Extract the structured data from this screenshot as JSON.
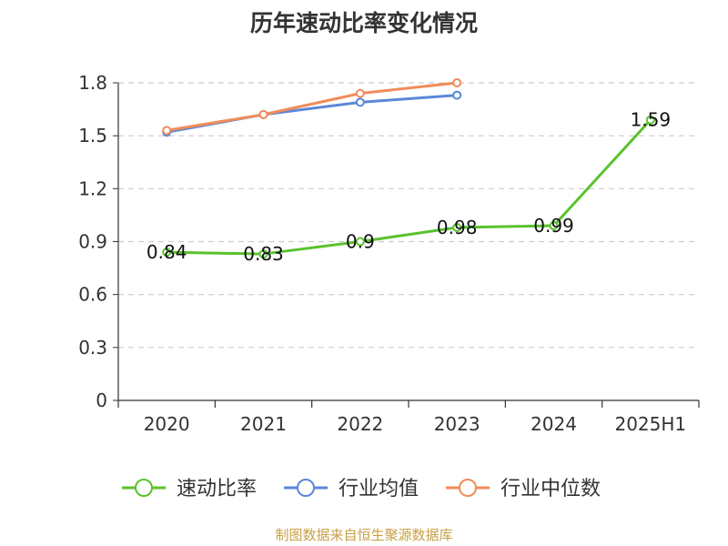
{
  "title": "历年速动比率变化情况",
  "source": "制图数据来自恒生聚源数据库",
  "chart_data": {
    "type": "line",
    "categories": [
      "2020",
      "2021",
      "2022",
      "2023",
      "2024",
      "2025H1"
    ],
    "y_ticks": [
      "0",
      "0.3",
      "0.6",
      "0.9",
      "1.2",
      "1.5",
      "1.8"
    ],
    "ylim": [
      0,
      1.8
    ],
    "grid": true,
    "legend_position": "bottom",
    "series": [
      {
        "name": "速动比率",
        "color": "#5ac22e",
        "values": [
          0.84,
          0.83,
          0.9,
          0.98,
          0.99,
          1.59
        ],
        "labels": [
          "0.84",
          "0.83",
          "0.9",
          "0.98",
          "0.99",
          "1.59"
        ]
      },
      {
        "name": "行业均值",
        "color": "#5b87d8",
        "values": [
          1.52,
          1.62,
          1.69,
          1.73,
          null,
          null
        ]
      },
      {
        "name": "行业中位数",
        "color": "#f08c5a",
        "values": [
          1.53,
          1.62,
          1.74,
          1.8,
          null,
          null
        ]
      }
    ]
  }
}
